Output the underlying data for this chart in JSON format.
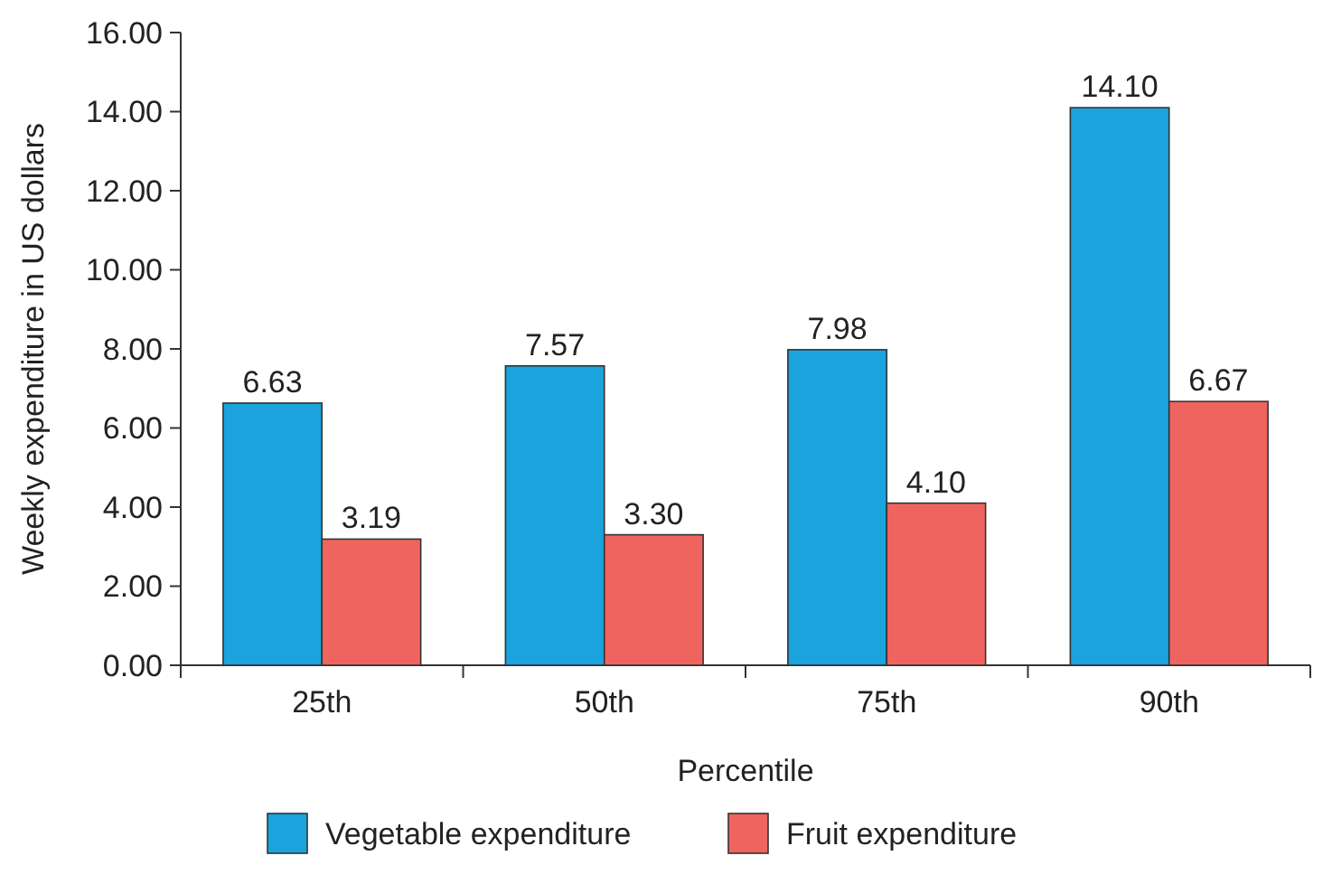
{
  "chart_data": {
    "type": "bar",
    "xlabel": "Percentile",
    "ylabel": "Weekly expenditure in US dollars",
    "categories": [
      "25th",
      "50th",
      "75th",
      "90th"
    ],
    "series": [
      {
        "name": "Vegetable expenditure",
        "color": "#1aa3dc",
        "values": [
          6.63,
          7.57,
          7.98,
          14.1
        ],
        "value_labels": [
          "6.63",
          "7.57",
          "7.98",
          "14.10"
        ]
      },
      {
        "name": "Fruit expenditure",
        "color": "#f0645f",
        "values": [
          3.19,
          3.3,
          4.1,
          6.67
        ],
        "value_labels": [
          "3.19",
          "3.30",
          "4.10",
          "6.67"
        ]
      }
    ],
    "ylim": [
      0,
      16
    ],
    "yticks": [
      {
        "value": 0,
        "label": "0.00"
      },
      {
        "value": 2,
        "label": "2.00"
      },
      {
        "value": 4,
        "label": "4.00"
      },
      {
        "value": 6,
        "label": "6.00"
      },
      {
        "value": 8,
        "label": "8.00"
      },
      {
        "value": 10,
        "label": "10.00"
      },
      {
        "value": 12,
        "label": "12.00"
      },
      {
        "value": 14,
        "label": "14.00"
      },
      {
        "value": 16,
        "label": "16.00"
      }
    ],
    "grid": false,
    "legend": "bottom"
  }
}
